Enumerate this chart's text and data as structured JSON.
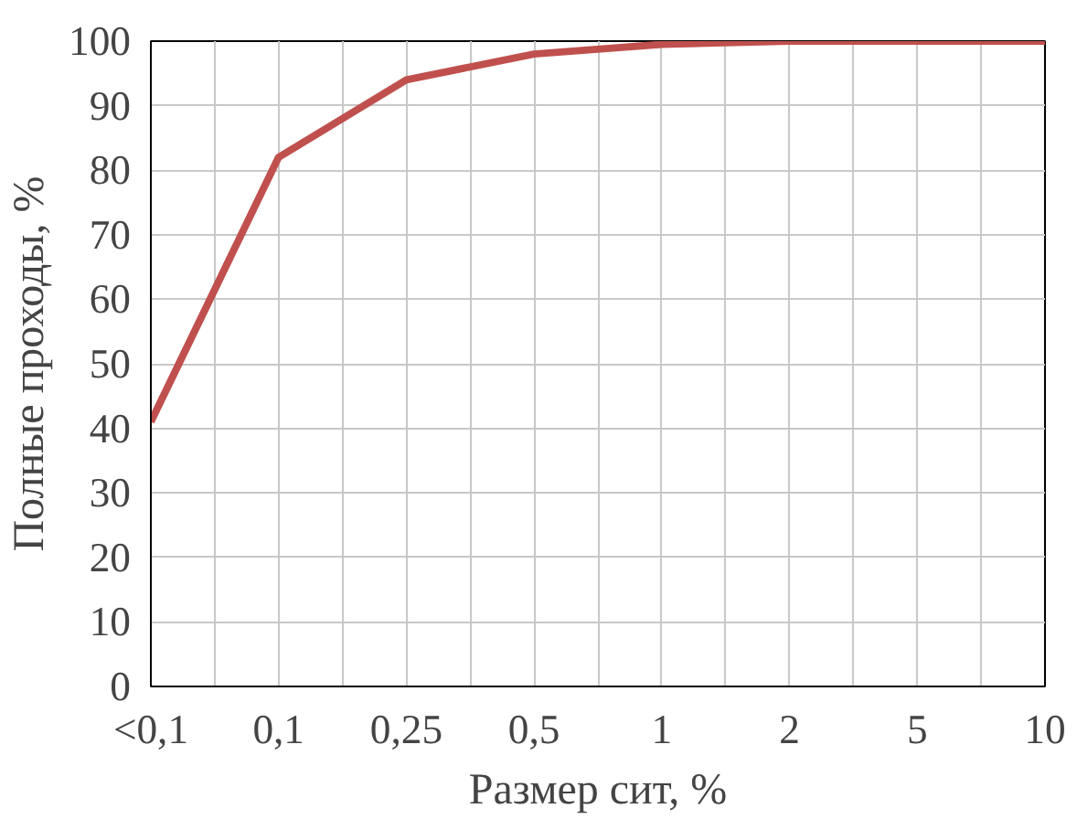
{
  "chart_data": {
    "type": "line",
    "xlabel": "Размер сит, %",
    "ylabel": "Полные проходы, %",
    "categories": [
      "<0,1",
      "0,1",
      "0,25",
      "0,5",
      "1",
      "2",
      "5",
      "10"
    ],
    "series": [
      {
        "color": "#c0504d",
        "values": [
          41,
          82,
          94,
          98,
          99.5,
          100,
          100,
          100
        ]
      }
    ],
    "ylim": [
      0,
      100
    ],
    "yticks": [
      0,
      10,
      20,
      30,
      40,
      50,
      60,
      70,
      80,
      90,
      100
    ],
    "grid": true,
    "marker": "none",
    "line_style": "solid"
  }
}
